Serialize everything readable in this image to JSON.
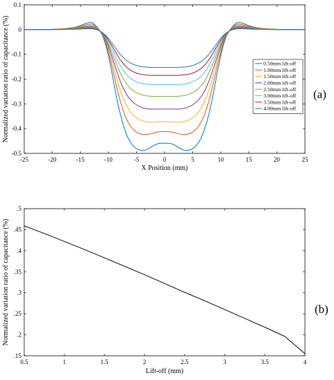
{
  "chart_data": [
    {
      "type": "line",
      "panel_label": "(a)",
      "xlabel": "X Position (mm)",
      "ylabel": "Normalized variation ratio of capacitance (%)",
      "xlim": [
        -25,
        25
      ],
      "ylim": [
        -0.5,
        0.1
      ],
      "xticks": [
        -25,
        -20,
        -15,
        -10,
        -5,
        0,
        5,
        10,
        15,
        20,
        25
      ],
      "yticks": [
        0.1,
        0,
        -0.1,
        -0.2,
        -0.3,
        -0.4,
        -0.5
      ],
      "ytick_labels": [
        "0.1",
        "0",
        "-0.1",
        "-0.2",
        "-0.3",
        "-0.4",
        "-0.5"
      ],
      "legend_position": "right",
      "grid": false,
      "x": [
        -25,
        -22,
        -20,
        -18,
        -16,
        -15,
        -14,
        -13.3,
        -12.8,
        -12,
        -11.5,
        -11,
        -10.5,
        -10,
        -9.5,
        -9,
        -8.5,
        -8,
        -7.5,
        -7,
        -6.5,
        -6,
        -5.5,
        -5,
        -4.5,
        -4,
        -3.5,
        -3,
        -2.5,
        -2,
        -1.5,
        -1,
        -0.5,
        0,
        0.5,
        1,
        1.5,
        2,
        2.5,
        3,
        3.5,
        4,
        4.5,
        5,
        5.5,
        6,
        6.5,
        7,
        7.5,
        8,
        8.5,
        9,
        9.5,
        10,
        10.5,
        11,
        11.5,
        12,
        12.8,
        13.3,
        14,
        15,
        16,
        18,
        20,
        22,
        25
      ],
      "series": [
        {
          "name": "0.50mm lift-off",
          "color": "#0072BD",
          "values": [
            0,
            0.0004,
            0.0012,
            0.0035,
            0.009,
            0.016,
            0.025,
            0.03,
            0.027,
            0.01,
            -0.005,
            -0.027,
            -0.06,
            -0.105,
            -0.16,
            -0.22,
            -0.28,
            -0.33,
            -0.375,
            -0.41,
            -0.438,
            -0.458,
            -0.472,
            -0.481,
            -0.486,
            -0.488,
            -0.487,
            -0.483,
            -0.476,
            -0.469,
            -0.463,
            -0.46,
            -0.459,
            -0.459,
            -0.459,
            -0.46,
            -0.463,
            -0.469,
            -0.476,
            -0.483,
            -0.487,
            -0.488,
            -0.486,
            -0.481,
            -0.472,
            -0.458,
            -0.438,
            -0.41,
            -0.375,
            -0.33,
            -0.28,
            -0.22,
            -0.16,
            -0.105,
            -0.06,
            -0.027,
            -0.005,
            0.01,
            0.027,
            0.03,
            0.025,
            0.016,
            0.009,
            0.0035,
            0.0012,
            0.0004,
            0
          ]
        },
        {
          "name": "1.00mm lift-off",
          "color": "#D95319",
          "values": [
            0,
            0.0003,
            0.001,
            0.003,
            0.007,
            0.012,
            0.019,
            0.023,
            0.021,
            0.008,
            -0.006,
            -0.025,
            -0.052,
            -0.09,
            -0.135,
            -0.185,
            -0.235,
            -0.28,
            -0.318,
            -0.35,
            -0.374,
            -0.392,
            -0.405,
            -0.414,
            -0.42,
            -0.423,
            -0.424,
            -0.423,
            -0.421,
            -0.418,
            -0.415,
            -0.413,
            -0.412,
            -0.412,
            -0.412,
            -0.413,
            -0.415,
            -0.418,
            -0.421,
            -0.423,
            -0.424,
            -0.423,
            -0.42,
            -0.414,
            -0.405,
            -0.392,
            -0.374,
            -0.35,
            -0.318,
            -0.28,
            -0.235,
            -0.185,
            -0.135,
            -0.09,
            -0.052,
            -0.025,
            -0.006,
            0.008,
            0.021,
            0.023,
            0.019,
            0.012,
            0.007,
            0.003,
            0.001,
            0.0003,
            0
          ]
        },
        {
          "name": "1.50mm lift-off",
          "color": "#EDB120",
          "values": [
            0,
            0.0002,
            0.0008,
            0.0025,
            0.006,
            0.01,
            0.015,
            0.018,
            0.016,
            0.006,
            -0.006,
            -0.023,
            -0.046,
            -0.078,
            -0.115,
            -0.157,
            -0.2,
            -0.238,
            -0.27,
            -0.297,
            -0.318,
            -0.335,
            -0.347,
            -0.356,
            -0.363,
            -0.368,
            -0.371,
            -0.373,
            -0.374,
            -0.374,
            -0.373,
            -0.372,
            -0.372,
            -0.372,
            -0.372,
            -0.372,
            -0.373,
            -0.374,
            -0.374,
            -0.373,
            -0.371,
            -0.368,
            -0.363,
            -0.356,
            -0.347,
            -0.335,
            -0.318,
            -0.297,
            -0.27,
            -0.238,
            -0.2,
            -0.157,
            -0.115,
            -0.078,
            -0.046,
            -0.023,
            -0.006,
            0.006,
            0.016,
            0.018,
            0.015,
            0.01,
            0.006,
            0.0025,
            0.0008,
            0.0002,
            0
          ]
        },
        {
          "name": "2.00mm lift-off",
          "color": "#7E2F8E",
          "values": [
            0,
            0.0002,
            0.0006,
            0.002,
            0.0045,
            0.008,
            0.012,
            0.014,
            0.012,
            0.004,
            -0.006,
            -0.021,
            -0.041,
            -0.068,
            -0.1,
            -0.135,
            -0.17,
            -0.202,
            -0.23,
            -0.253,
            -0.271,
            -0.285,
            -0.296,
            -0.304,
            -0.31,
            -0.315,
            -0.318,
            -0.32,
            -0.321,
            -0.321,
            -0.321,
            -0.321,
            -0.321,
            -0.321,
            -0.321,
            -0.321,
            -0.321,
            -0.321,
            -0.321,
            -0.32,
            -0.318,
            -0.315,
            -0.31,
            -0.304,
            -0.296,
            -0.285,
            -0.271,
            -0.253,
            -0.23,
            -0.202,
            -0.17,
            -0.135,
            -0.1,
            -0.068,
            -0.041,
            -0.021,
            -0.006,
            0.004,
            0.012,
            0.014,
            0.012,
            0.008,
            0.0045,
            0.002,
            0.0006,
            0.0002,
            0
          ]
        },
        {
          "name": "2.50mm lift-off",
          "color": "#77AC30",
          "values": [
            0,
            0.0001,
            0.0005,
            0.0016,
            0.0036,
            0.006,
            0.009,
            0.011,
            0.009,
            0.002,
            -0.006,
            -0.019,
            -0.036,
            -0.058,
            -0.085,
            -0.114,
            -0.143,
            -0.17,
            -0.193,
            -0.212,
            -0.227,
            -0.239,
            -0.248,
            -0.255,
            -0.26,
            -0.264,
            -0.267,
            -0.268,
            -0.269,
            -0.27,
            -0.27,
            -0.27,
            -0.27,
            -0.27,
            -0.27,
            -0.27,
            -0.27,
            -0.27,
            -0.269,
            -0.268,
            -0.267,
            -0.264,
            -0.26,
            -0.255,
            -0.248,
            -0.239,
            -0.227,
            -0.212,
            -0.193,
            -0.17,
            -0.143,
            -0.114,
            -0.085,
            -0.058,
            -0.036,
            -0.019,
            -0.006,
            0.002,
            0.009,
            0.011,
            0.009,
            0.006,
            0.0036,
            0.0016,
            0.0005,
            0.0001,
            0
          ]
        },
        {
          "name": "3.00mm lift-off",
          "color": "#4DBEEE",
          "values": [
            0,
            0.0001,
            0.0004,
            0.0012,
            0.0027,
            0.0045,
            0.007,
            0.008,
            0.007,
            0.001,
            -0.006,
            -0.017,
            -0.031,
            -0.049,
            -0.071,
            -0.095,
            -0.119,
            -0.141,
            -0.16,
            -0.176,
            -0.188,
            -0.198,
            -0.205,
            -0.211,
            -0.215,
            -0.218,
            -0.22,
            -0.221,
            -0.222,
            -0.222,
            -0.222,
            -0.222,
            -0.222,
            -0.222,
            -0.222,
            -0.222,
            -0.222,
            -0.222,
            -0.222,
            -0.221,
            -0.22,
            -0.218,
            -0.215,
            -0.211,
            -0.205,
            -0.198,
            -0.188,
            -0.176,
            -0.16,
            -0.141,
            -0.119,
            -0.095,
            -0.071,
            -0.049,
            -0.031,
            -0.017,
            -0.006,
            0.001,
            0.007,
            0.008,
            0.007,
            0.0045,
            0.0027,
            0.0012,
            0.0004,
            0.0001,
            0
          ]
        },
        {
          "name": "3.50mm lift-off",
          "color": "#A2142F",
          "values": [
            0,
            0.0001,
            0.0003,
            0.0009,
            0.002,
            0.0033,
            0.005,
            0.006,
            0.005,
            0,
            -0.006,
            -0.015,
            -0.027,
            -0.042,
            -0.06,
            -0.08,
            -0.1,
            -0.118,
            -0.134,
            -0.147,
            -0.157,
            -0.165,
            -0.171,
            -0.176,
            -0.179,
            -0.181,
            -0.183,
            -0.184,
            -0.185,
            -0.185,
            -0.185,
            -0.185,
            -0.185,
            -0.185,
            -0.185,
            -0.185,
            -0.185,
            -0.185,
            -0.185,
            -0.184,
            -0.183,
            -0.181,
            -0.179,
            -0.176,
            -0.171,
            -0.165,
            -0.157,
            -0.147,
            -0.134,
            -0.118,
            -0.1,
            -0.08,
            -0.06,
            -0.042,
            -0.027,
            -0.015,
            -0.006,
            0,
            0.005,
            0.006,
            0.005,
            0.0033,
            0.002,
            0.0009,
            0.0003,
            0.0001,
            0
          ]
        },
        {
          "name": "4.00mm lift-off",
          "color": "#1F77B4",
          "values": [
            0,
            0,
            0.0002,
            0.0006,
            0.0014,
            0.0022,
            0.0035,
            0.004,
            0.003,
            -0.001,
            -0.006,
            -0.013,
            -0.023,
            -0.035,
            -0.05,
            -0.066,
            -0.082,
            -0.097,
            -0.11,
            -0.121,
            -0.129,
            -0.136,
            -0.141,
            -0.145,
            -0.148,
            -0.15,
            -0.151,
            -0.152,
            -0.153,
            -0.153,
            -0.153,
            -0.153,
            -0.153,
            -0.153,
            -0.153,
            -0.153,
            -0.153,
            -0.153,
            -0.153,
            -0.152,
            -0.151,
            -0.15,
            -0.148,
            -0.145,
            -0.141,
            -0.136,
            -0.129,
            -0.121,
            -0.11,
            -0.097,
            -0.082,
            -0.066,
            -0.05,
            -0.035,
            -0.023,
            -0.013,
            -0.006,
            -0.001,
            0.003,
            0.004,
            0.0035,
            0.0022,
            0.0014,
            0.0006,
            0.0002,
            0,
            0
          ]
        }
      ]
    },
    {
      "type": "line",
      "panel_label": "(b)",
      "xlabel": "Lift-off (mm)",
      "ylabel": "Normalized variation ratio of capacitance (%)",
      "xlim": [
        0.5,
        4
      ],
      "ylim": [
        0.15,
        0.5
      ],
      "xticks": [
        0.5,
        1,
        1.5,
        2,
        2.5,
        3,
        3.5,
        4
      ],
      "yticks": [
        0.5,
        0.45,
        0.4,
        0.35,
        0.3,
        0.25,
        0.2,
        0.15
      ],
      "grid": false,
      "x": [
        0.5,
        0.75,
        1,
        1.25,
        1.5,
        1.75,
        2,
        2.25,
        2.5,
        2.75,
        3,
        3.25,
        3.5,
        3.75,
        4
      ],
      "series": [
        {
          "color": "#000000",
          "values": [
            0.459,
            0.441,
            0.422,
            0.403,
            0.383,
            0.363,
            0.343,
            0.322,
            0.301,
            0.281,
            0.26,
            0.239,
            0.218,
            0.196,
            0.155
          ]
        }
      ]
    }
  ]
}
